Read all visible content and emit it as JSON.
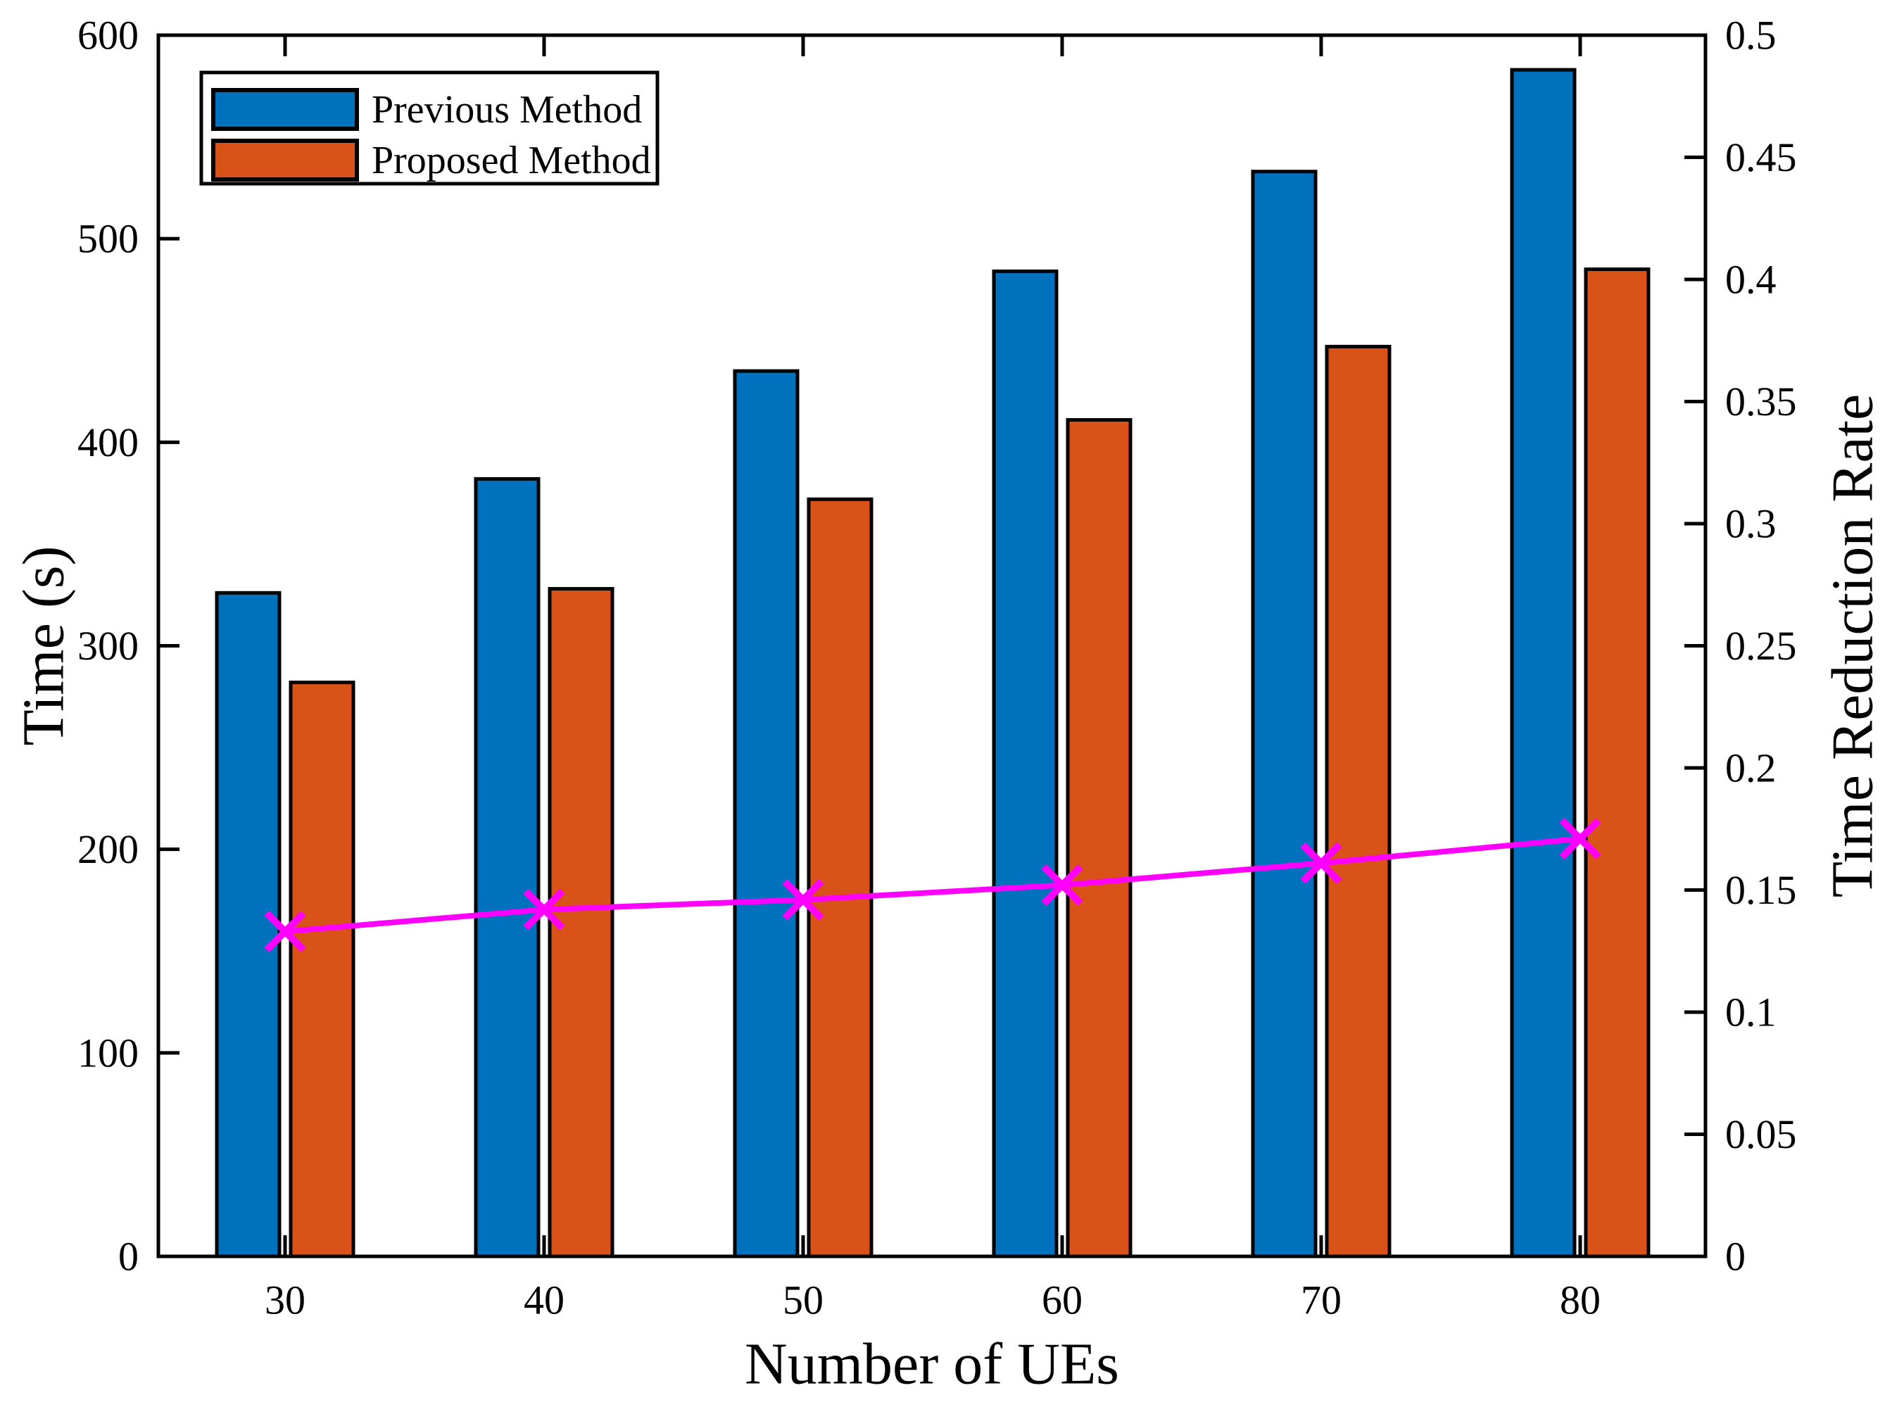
{
  "figure": {
    "background": "#FFFFFF",
    "axis_color": "#000000",
    "line_color": "#FF00FF"
  },
  "chart_data": {
    "type": "bar",
    "categories": [
      30,
      40,
      50,
      60,
      70,
      80
    ],
    "x_tick_labels": [
      "30",
      "40",
      "50",
      "60",
      "70",
      "80"
    ],
    "xlabel": "Number of UEs",
    "left_axis": {
      "label": "Time (s)",
      "min": 0,
      "max": 600,
      "ticks": [
        "0",
        "100",
        "200",
        "300",
        "400",
        "500",
        "600"
      ]
    },
    "right_axis": {
      "label": "Time Reduction Rate",
      "min": 0,
      "max": 0.5,
      "ticks": [
        "0",
        "0.05",
        "0.1",
        "0.15",
        "0.2",
        "0.25",
        "0.3",
        "0.35",
        "0.4",
        "0.45",
        "0.5"
      ]
    },
    "series": [
      {
        "name": "Previous Method",
        "type": "bar",
        "axis": "left",
        "color": "#0072BD",
        "values": [
          326,
          382,
          435,
          484,
          533,
          583
        ]
      },
      {
        "name": "Proposed Method",
        "type": "bar",
        "axis": "left",
        "color": "#D95319",
        "values": [
          282,
          328,
          372,
          411,
          447,
          485
        ]
      },
      {
        "name": "Time Reduction Rate",
        "type": "line",
        "axis": "right",
        "color": "#FF00FF",
        "marker": "x",
        "values": [
          0.133,
          0.142,
          0.146,
          0.152,
          0.161,
          0.171
        ]
      }
    ],
    "legend": {
      "position": "top-left",
      "entries": [
        "Previous Method",
        "Proposed Method"
      ]
    },
    "grid": false
  }
}
